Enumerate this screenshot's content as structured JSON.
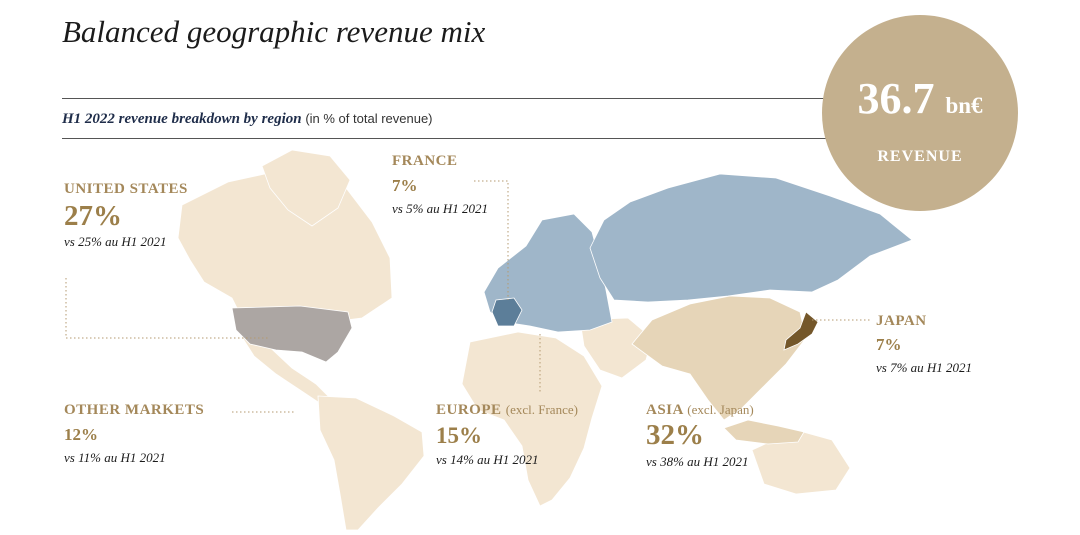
{
  "title": "Balanced geographic revenue mix",
  "subtitle": {
    "bold": "H1 2022 revenue breakdown by region",
    "unit": "(in % of total revenue)"
  },
  "badge": {
    "value": "36.7",
    "unit": "bn€",
    "label": "REVENUE"
  },
  "colors": {
    "base": "#f3e6d2",
    "europe": "#9fb6c9",
    "france": "#5c7e99",
    "asia": "#e6d5b8",
    "united_states": "#aca6a3",
    "japan": "#74572a",
    "badge": "#c4b08e",
    "label": "#a4885a"
  },
  "chart_data": {
    "type": "map",
    "title": "Balanced geographic revenue mix",
    "subtitle": "H1 2022 revenue breakdown by region (in % of total revenue)",
    "total_revenue": "36.7 bn€",
    "regions": [
      {
        "key": "united_states",
        "name": "UNITED STATES",
        "excl": "",
        "value": 27,
        "value_label": "27%",
        "comparison": "vs 25% au H1 2021"
      },
      {
        "key": "france",
        "name": "FRANCE",
        "excl": "",
        "value": 7,
        "value_label": "7%",
        "comparison": "vs 5% au H1 2021"
      },
      {
        "key": "japan",
        "name": "JAPAN",
        "excl": "",
        "value": 7,
        "value_label": "7%",
        "comparison": "vs 7% au H1 2021"
      },
      {
        "key": "other",
        "name": "OTHER MARKETS",
        "excl": "",
        "value": 12,
        "value_label": "12%",
        "comparison": "vs 11% au H1 2021"
      },
      {
        "key": "europe",
        "name": "EUROPE",
        "excl": "(excl. France)",
        "value": 15,
        "value_label": "15%",
        "comparison": "vs 14% au H1 2021"
      },
      {
        "key": "asia",
        "name": "ASIA",
        "excl": "(excl. Japan)",
        "value": 32,
        "value_label": "32%",
        "comparison": "vs 38% au H1 2021"
      }
    ]
  }
}
